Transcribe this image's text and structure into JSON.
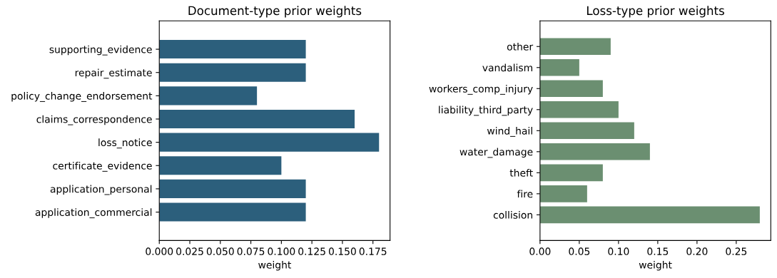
{
  "chart_data": [
    {
      "type": "bar",
      "orientation": "horizontal",
      "title": "Document-type prior weights",
      "xlabel": "weight",
      "categories": [
        "supporting_evidence",
        "repair_estimate",
        "policy_change_endorsement",
        "claims_correspondence",
        "loss_notice",
        "certificate_evidence",
        "application_personal",
        "application_commercial"
      ],
      "values": [
        0.12,
        0.12,
        0.08,
        0.16,
        0.18,
        0.1,
        0.12,
        0.12
      ],
      "color": "#2c5f7c",
      "xlim": [
        0,
        0.189
      ],
      "xticks": [
        {
          "value": 0,
          "label": "0.000"
        },
        {
          "value": 0.025,
          "label": "0.025"
        },
        {
          "value": 0.05,
          "label": "0.050"
        },
        {
          "value": 0.075,
          "label": "0.075"
        },
        {
          "value": 0.1,
          "label": "0.100"
        },
        {
          "value": 0.125,
          "label": "0.125"
        },
        {
          "value": 0.15,
          "label": "0.150"
        },
        {
          "value": 0.175,
          "label": "0.175"
        }
      ]
    },
    {
      "type": "bar",
      "orientation": "horizontal",
      "title": "Loss-type prior weights",
      "xlabel": "weight",
      "categories": [
        "other",
        "vandalism",
        "workers_comp_injury",
        "liability_third_party",
        "wind_hail",
        "water_damage",
        "theft",
        "fire",
        "collision"
      ],
      "values": [
        0.09,
        0.05,
        0.08,
        0.1,
        0.12,
        0.14,
        0.08,
        0.06,
        0.28
      ],
      "color": "#6b8f71",
      "xlim": [
        0,
        0.294
      ],
      "xticks": [
        {
          "value": 0,
          "label": "0.00"
        },
        {
          "value": 0.05,
          "label": "0.05"
        },
        {
          "value": 0.1,
          "label": "0.10"
        },
        {
          "value": 0.15,
          "label": "0.15"
        },
        {
          "value": 0.2,
          "label": "0.20"
        },
        {
          "value": 0.25,
          "label": "0.25"
        }
      ]
    }
  ]
}
